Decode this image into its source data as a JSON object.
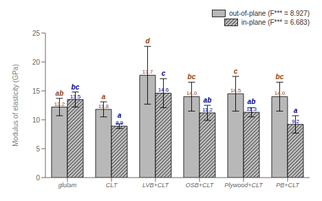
{
  "chart_data": {
    "type": "bar",
    "categories": [
      "glulam",
      "CLT",
      "LVB+CLT",
      "OSB+CLT",
      "Plywood+CLT",
      "PB+CLT"
    ],
    "ylabel": "Modulus of elasticity (GPa)",
    "ylim": [
      0,
      25
    ],
    "yticks": [
      0,
      5,
      10,
      15,
      20,
      25
    ],
    "grid": false,
    "legend": "upper right",
    "data_labels": true,
    "series": [
      {
        "name": "out-of-plane (F*** = 8.927)",
        "color": "#b8b8b8",
        "label_color": "#8B4513",
        "values": [
          12.2,
          11.8,
          17.7,
          14.0,
          14.5,
          14.0
        ],
        "value_labels": [
          "12.2",
          "11.8",
          "17.7",
          "14.0",
          "14.5",
          "14.0"
        ],
        "errors": [
          1.5,
          1.3,
          5.0,
          2.5,
          3.0,
          2.5
        ],
        "annotations": [
          "ab",
          "a",
          "d",
          "bc",
          "c",
          "bc"
        ]
      },
      {
        "name": "in-plane (F*** = 6.683)",
        "color": "#b8b8b8",
        "label_color": "#00008B",
        "values": [
          13.5,
          8.9,
          14.6,
          11.2,
          11.3,
          9.2
        ],
        "value_labels": [
          "13.5",
          "8.9",
          "14.6",
          "11.2",
          "11.3",
          "9.2"
        ],
        "errors": [
          1.3,
          0.4,
          2.5,
          1.3,
          0.8,
          1.5
        ],
        "annotations": [
          "bc",
          "a",
          "c",
          "ab",
          "ab",
          "a"
        ]
      }
    ]
  }
}
